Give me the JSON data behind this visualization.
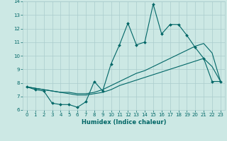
{
  "xlabel": "Humidex (Indice chaleur)",
  "bg_color": "#cce8e4",
  "grid_color": "#aacccc",
  "line_color": "#006666",
  "xlim": [
    -0.5,
    23.5
  ],
  "ylim": [
    6,
    14
  ],
  "xticks": [
    0,
    1,
    2,
    3,
    4,
    5,
    6,
    7,
    8,
    9,
    10,
    11,
    12,
    13,
    14,
    15,
    16,
    17,
    18,
    19,
    20,
    21,
    22,
    23
  ],
  "yticks": [
    6,
    7,
    8,
    9,
    10,
    11,
    12,
    13,
    14
  ],
  "x": [
    0,
    1,
    2,
    3,
    4,
    5,
    6,
    7,
    8,
    9,
    10,
    11,
    12,
    13,
    14,
    15,
    16,
    17,
    18,
    19,
    20,
    21,
    22,
    23
  ],
  "line1": [
    7.7,
    7.5,
    7.4,
    6.5,
    6.4,
    6.4,
    6.2,
    6.6,
    8.1,
    7.4,
    9.4,
    10.8,
    12.4,
    10.8,
    11.0,
    13.8,
    11.6,
    12.3,
    12.3,
    11.5,
    10.6,
    9.8,
    8.1,
    8.1
  ],
  "line2": [
    7.7,
    7.6,
    7.5,
    7.4,
    7.3,
    7.3,
    7.2,
    7.2,
    7.3,
    7.5,
    7.8,
    8.1,
    8.4,
    8.7,
    8.9,
    9.2,
    9.5,
    9.8,
    10.1,
    10.4,
    10.7,
    10.9,
    10.2,
    8.1
  ],
  "line3": [
    7.7,
    7.6,
    7.5,
    7.4,
    7.3,
    7.2,
    7.1,
    7.1,
    7.2,
    7.3,
    7.5,
    7.8,
    8.0,
    8.2,
    8.4,
    8.6,
    8.8,
    9.0,
    9.2,
    9.4,
    9.6,
    9.8,
    9.2,
    8.1
  ],
  "tick_fontsize": 5,
  "xlabel_fontsize": 6,
  "marker": "D",
  "markersize": 2,
  "linewidth": 0.8
}
